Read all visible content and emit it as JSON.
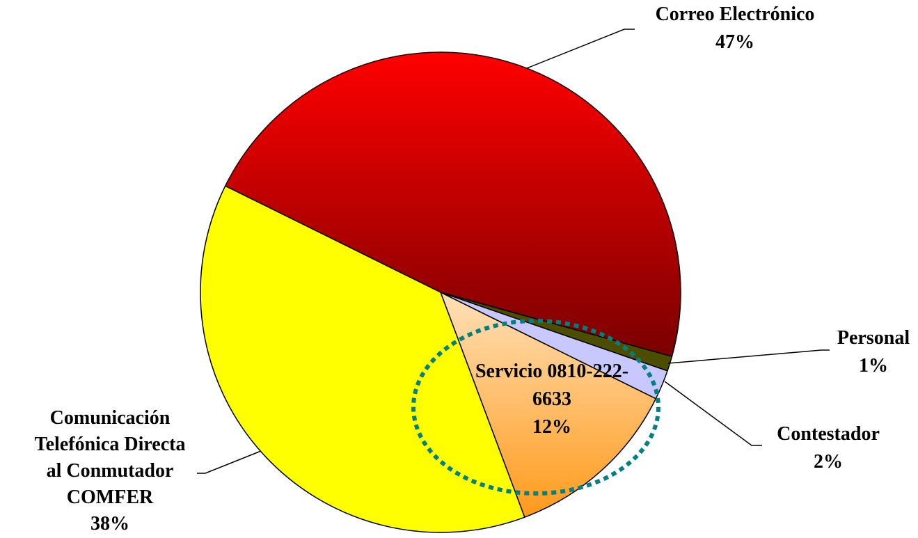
{
  "chart_data": {
    "type": "pie",
    "categories": [
      "Correo Electrónico",
      "Personal",
      "Contestador",
      "Servicio 0810-222-6633",
      "Comunicación Telefónica Directa al Conmutador COMFER"
    ],
    "values": [
      47,
      1,
      2,
      12,
      38
    ],
    "value_labels": [
      "47%",
      "1%",
      "2%",
      "12%",
      "38%"
    ],
    "colors": [
      "#ff0000",
      "#4d4d00",
      "#c8c8ff",
      "#ffe0b8",
      "#ffff00"
    ],
    "gradient_colors": [
      "#7a0000",
      "#4d4d00",
      "#c8c8ff",
      "#ff9a1a",
      "#ffff00"
    ]
  }
}
